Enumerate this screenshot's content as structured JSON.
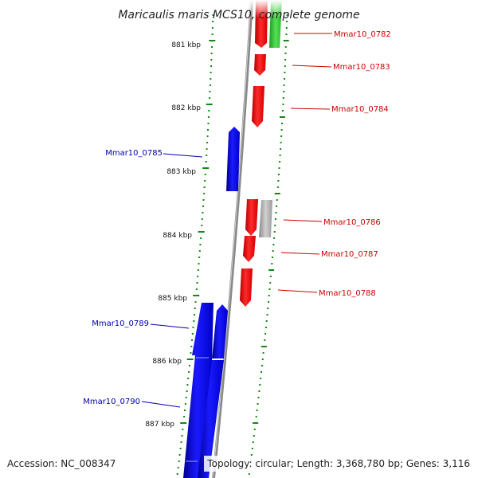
{
  "title": "Maricaulis maris MCS10, complete genome",
  "accession": "Accession: NC_008347",
  "topology": "Topology: circular; Length: 3,368,780 bp; Genes: 3,116",
  "colors": {
    "forward_gene": "#ff0000",
    "reverse_gene": "#0000ff",
    "rna_gene": "#33cc33",
    "pseudo_gene": "#aaaaaa",
    "scale_tick": "#118811",
    "backbone": "#888888",
    "label_forward": "#cc0000",
    "label_reverse": "#0000aa"
  },
  "scale": {
    "kbp_labels": [
      "881 kbp",
      "882 kbp",
      "883 kbp",
      "884 kbp",
      "885 kbp",
      "886 kbp",
      "887 kbp"
    ]
  },
  "genes": {
    "forward": [
      "Mmar10_0782",
      "Mmar10_0783",
      "Mmar10_0784",
      "Mmar10_0786",
      "Mmar10_0787",
      "Mmar10_0788"
    ],
    "reverse": [
      "Mmar10_0785",
      "Mmar10_0789",
      "Mmar10_0790"
    ]
  }
}
